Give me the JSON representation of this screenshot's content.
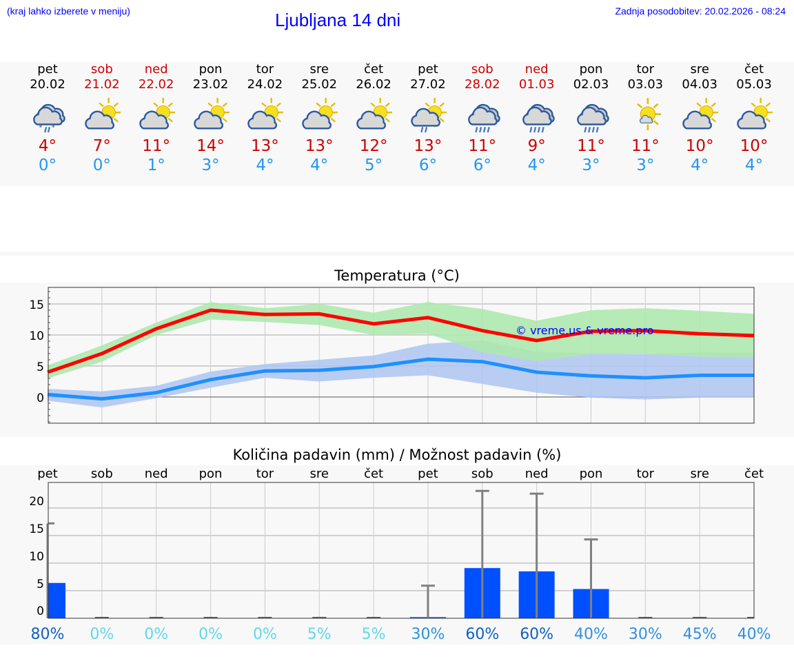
{
  "header": {
    "note": "(kraj lahko izberete v meniju)",
    "title": "Ljubljana 14 dni",
    "updated": "Zadnja posodobitev: 20.02.2026 - 08:24"
  },
  "days": [
    {
      "name": "pet",
      "date": "20.02",
      "weekend": false,
      "icon": "sleet-cloud-icon",
      "max": "4°",
      "min": "0°"
    },
    {
      "name": "sob",
      "date": "21.02",
      "weekend": true,
      "icon": "partly-cloudy-icon",
      "max": "7°",
      "min": "0°"
    },
    {
      "name": "ned",
      "date": "22.02",
      "weekend": true,
      "icon": "partly-cloudy-icon",
      "max": "11°",
      "min": "1°"
    },
    {
      "name": "pon",
      "date": "23.02",
      "weekend": false,
      "icon": "partly-cloudy-icon",
      "max": "14°",
      "min": "3°"
    },
    {
      "name": "tor",
      "date": "24.02",
      "weekend": false,
      "icon": "partly-cloudy-icon",
      "max": "13°",
      "min": "4°"
    },
    {
      "name": "sre",
      "date": "25.02",
      "weekend": false,
      "icon": "partly-cloudy-icon",
      "max": "13°",
      "min": "4°"
    },
    {
      "name": "čet",
      "date": "26.02",
      "weekend": false,
      "icon": "partly-cloudy-icon",
      "max": "12°",
      "min": "5°"
    },
    {
      "name": "pet",
      "date": "27.02",
      "weekend": false,
      "icon": "sun-cloud-rain-icon",
      "max": "13°",
      "min": "6°"
    },
    {
      "name": "sob",
      "date": "28.02",
      "weekend": true,
      "icon": "rain-cloud-icon",
      "max": "11°",
      "min": "6°"
    },
    {
      "name": "ned",
      "date": "01.03",
      "weekend": true,
      "icon": "rain-cloud-icon",
      "max": "9°",
      "min": "4°"
    },
    {
      "name": "pon",
      "date": "02.03",
      "weekend": false,
      "icon": "rain-cloud-icon",
      "max": "11°",
      "min": "3°"
    },
    {
      "name": "tor",
      "date": "03.03",
      "weekend": false,
      "icon": "sunny-small-cloud-icon",
      "max": "11°",
      "min": "3°"
    },
    {
      "name": "sre",
      "date": "04.03",
      "weekend": false,
      "icon": "partly-cloudy-icon",
      "max": "10°",
      "min": "4°"
    },
    {
      "name": "čet",
      "date": "05.03",
      "weekend": false,
      "icon": "partly-cloudy-icon",
      "max": "10°",
      "min": "4°"
    }
  ],
  "colors": {
    "max": "#ff0000",
    "min": "#1e90ff",
    "maxBand": "#aee8ae",
    "minBand": "#aec6f2",
    "bar": "#0050ff",
    "err": "#808080"
  },
  "chart_data": [
    {
      "type": "line",
      "title": "Temperatura (°C)",
      "watermark": "© vreme.us & vreme.pro",
      "ylim": [
        -4.2,
        17.7
      ],
      "yticks": [
        0,
        5,
        10,
        15
      ],
      "series": [
        {
          "name": "max",
          "values": [
            4,
            7,
            11,
            14,
            13.3,
            13.4,
            11.8,
            12.8,
            10.7,
            9.1,
            10.6,
            10.7,
            10.2,
            9.9
          ],
          "upper": [
            5.1,
            8.3,
            12,
            15.3,
            14.3,
            15.0,
            13.6,
            15.3,
            14.2,
            12.3,
            14.0,
            14.3,
            13.9,
            13.4
          ],
          "lower": [
            3,
            5.7,
            10,
            12.5,
            12.1,
            11.6,
            10,
            10.2,
            7.2,
            5.8,
            6.9,
            6.9,
            6.5,
            6.3
          ]
        },
        {
          "name": "min",
          "values": [
            0.4,
            -0.3,
            0.7,
            2.8,
            4.2,
            4.3,
            4.9,
            6.1,
            5.7,
            4.0,
            3.4,
            3.1,
            3.5,
            3.5
          ],
          "upper": [
            1.3,
            0.9,
            1.8,
            4.1,
            5.3,
            6.0,
            6.7,
            8.6,
            9.1,
            7.3,
            7.0,
            6.9,
            7.2,
            7.1
          ],
          "lower": [
            -0.6,
            -1.7,
            -0.2,
            1.5,
            3.1,
            2.5,
            3.1,
            3.5,
            2.1,
            0.7,
            -0.1,
            -0.4,
            -0.1,
            -0.1
          ]
        }
      ]
    },
    {
      "type": "bar",
      "title": "Količina padavin (mm) / Možnost padavin (%)",
      "ylim": [
        0,
        24.5
      ],
      "yticks": [
        0,
        5,
        10,
        15,
        20
      ],
      "categories": [
        "pet",
        "sob",
        "ned",
        "pon",
        "tor",
        "sre",
        "čet",
        "pet",
        "sob",
        "ned",
        "pon",
        "tor",
        "sre",
        "čet"
      ],
      "values": [
        6.4,
        0,
        0,
        0,
        0,
        0,
        0,
        0.2,
        9.1,
        8.5,
        5.3,
        0,
        0,
        0
      ],
      "err_max": [
        17.2,
        0,
        0,
        0,
        0,
        0,
        0,
        5.9,
        23.1,
        22.6,
        14.3,
        0,
        0,
        0
      ],
      "probability": [
        "80%",
        "0%",
        "0%",
        "0%",
        "0%",
        "5%",
        "5%",
        "30%",
        "60%",
        "60%",
        "40%",
        "30%",
        "45%",
        "40%"
      ]
    }
  ]
}
